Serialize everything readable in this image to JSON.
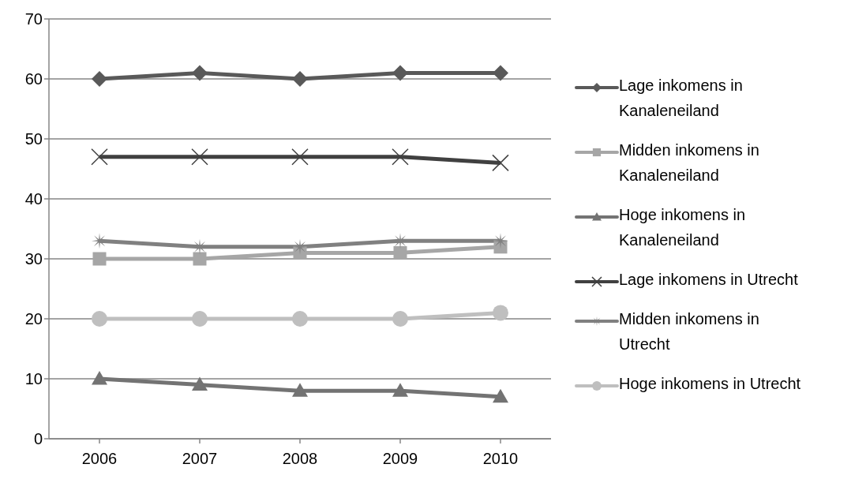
{
  "chart_data": {
    "type": "line",
    "categories": [
      "2006",
      "2007",
      "2008",
      "2009",
      "2010"
    ],
    "series": [
      {
        "name": "Lage inkomens in Kanaleneiland",
        "color": "#595959",
        "marker": "diamond",
        "values": [
          60,
          61,
          60,
          61,
          61
        ]
      },
      {
        "name": "Midden inkomens in Kanaleneiland",
        "color": "#a6a6a6",
        "marker": "square",
        "values": [
          30,
          30,
          31,
          31,
          32
        ]
      },
      {
        "name": "Hoge inkomens in Kanaleneiland",
        "color": "#737373",
        "marker": "triangle",
        "values": [
          10,
          9,
          8,
          8,
          7
        ]
      },
      {
        "name": "Lage inkomens in Utrecht",
        "color": "#404040",
        "marker": "cross",
        "values": [
          47,
          47,
          47,
          47,
          46
        ]
      },
      {
        "name": "Midden inkomens in Utrecht",
        "color": "#808080",
        "marker": "star",
        "values": [
          33,
          32,
          32,
          33,
          33
        ]
      },
      {
        "name": "Hoge inkomens in Utrecht",
        "color": "#bfbfbf",
        "marker": "circle",
        "values": [
          20,
          20,
          20,
          20,
          21
        ]
      }
    ],
    "ylim": [
      0,
      70
    ],
    "yticks": [
      0,
      10,
      20,
      30,
      40,
      50,
      60,
      70
    ],
    "grid": "y",
    "legend": "right",
    "line_style": "solid"
  }
}
